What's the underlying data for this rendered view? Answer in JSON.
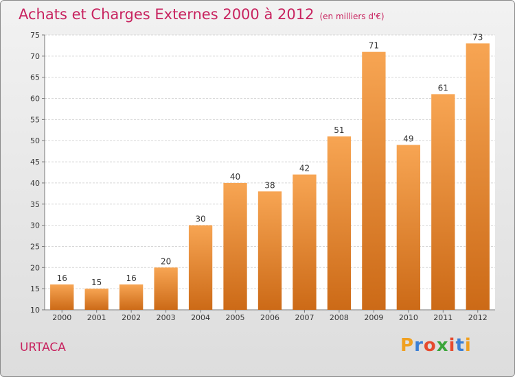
{
  "chart_data": {
    "type": "bar",
    "title": "Achats et Charges Externes 2000 à 2012",
    "unit_note": "(en milliers d'€)",
    "categories": [
      "2000",
      "2001",
      "2002",
      "2003",
      "2004",
      "2005",
      "2006",
      "2007",
      "2008",
      "2009",
      "2010",
      "2011",
      "2012"
    ],
    "values": [
      16,
      15,
      16,
      20,
      30,
      40,
      38,
      42,
      51,
      71,
      49,
      61,
      73
    ],
    "ylim": [
      10,
      75
    ],
    "yticks": [
      10,
      15,
      20,
      25,
      30,
      35,
      40,
      45,
      50,
      55,
      60,
      65,
      70,
      75
    ],
    "xlabel": "",
    "ylabel": "",
    "grid": true,
    "bar_color_top": "#f7a553",
    "bar_color_bottom": "#cc6a17"
  },
  "commune": "URTACA",
  "logo": {
    "letters": [
      "P",
      "r",
      "o",
      "x",
      "i",
      "t",
      "i"
    ],
    "colors": [
      "#f0a020",
      "#3a7fd5",
      "#e64a2e",
      "#3aa53a",
      "#e64a2e",
      "#3a7fd5",
      "#f0a020"
    ]
  }
}
